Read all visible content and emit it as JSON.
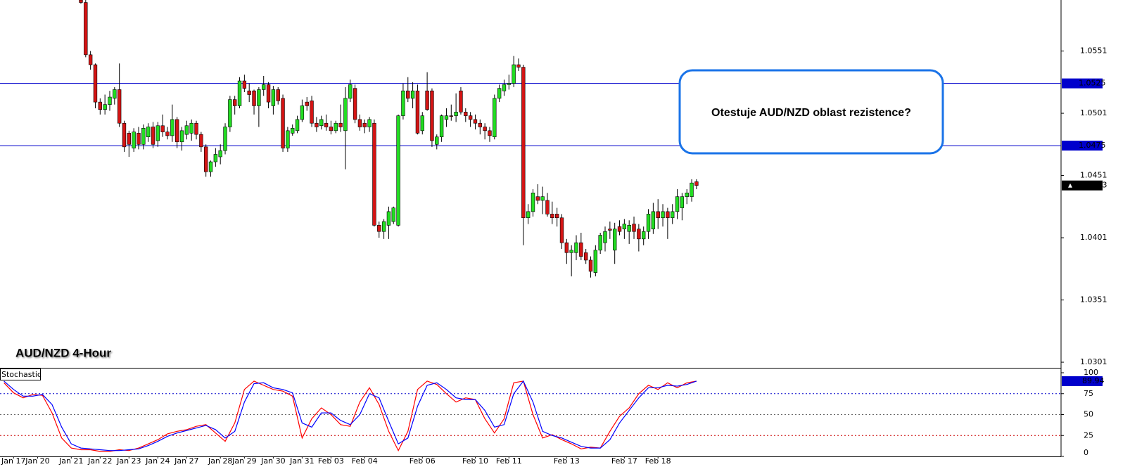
{
  "chart_data": [
    {
      "type": "candlestick",
      "title": "AUD/NZD 4-Hour",
      "annotation": "Otestuje AUD/NZD oblast rezistence?",
      "x": [
        17,
        18,
        19,
        20,
        21,
        22,
        23,
        24,
        25,
        26,
        27,
        28,
        29,
        30,
        31,
        32,
        33,
        34,
        35,
        36,
        37,
        38,
        39,
        40,
        41,
        42,
        43,
        44,
        45,
        46,
        47,
        48,
        49,
        50,
        51,
        52,
        53,
        54,
        55,
        56,
        57,
        58,
        59,
        60,
        61,
        62,
        63,
        64,
        65,
        66,
        67,
        68,
        69,
        70,
        71,
        72,
        73,
        74,
        75,
        76,
        77,
        78,
        79,
        80,
        81,
        82,
        83,
        84,
        85,
        86,
        87,
        88,
        89,
        90,
        91,
        92,
        93,
        94,
        95,
        96,
        97,
        98,
        99,
        100,
        101,
        102,
        103,
        104,
        105,
        106,
        107,
        108,
        109,
        110,
        111,
        112,
        113,
        114,
        115,
        116,
        117,
        118,
        119,
        120,
        121,
        122,
        123,
        124,
        125,
        126,
        127,
        128,
        129,
        130,
        131,
        132,
        133,
        134,
        135,
        136,
        137,
        138,
        139,
        140,
        141,
        142,
        143,
        144,
        145
      ],
      "open": [
        1.0592,
        1.059,
        1.0548,
        1.054,
        1.051,
        1.0504,
        1.0508,
        1.0513,
        1.052,
        1.0493,
        1.0485,
        1.0473,
        1.0485,
        1.0476,
        1.0482,
        1.049,
        1.0479,
        1.0491,
        1.0486,
        1.0483,
        1.0496,
        1.0478,
        1.0484,
        1.0485,
        1.0493,
        1.0484,
        1.0474,
        1.0454,
        1.0462,
        1.0466,
        1.0471,
        1.049,
        1.0512,
        1.0507,
        1.0527,
        1.0519,
        1.0519,
        1.0507,
        1.052,
        1.0524,
        1.0507,
        1.052,
        1.0513,
        1.0473,
        1.0485,
        1.0487,
        1.0496,
        1.051,
        1.0511,
        1.0493,
        1.0491,
        1.0493,
        1.049,
        1.0487,
        1.0493,
        1.0487,
        1.0513,
        1.0521,
        1.0496,
        1.0493,
        1.049,
        1.0493,
        1.0411,
        1.0406,
        1.0411,
        1.0414,
        1.0411,
        1.0499,
        1.0519,
        1.0513,
        1.0519,
        1.0487,
        1.0519,
        1.0519,
        1.0476,
        1.0482,
        1.0496,
        1.0499,
        1.0499,
        1.0519,
        1.0502,
        1.0499,
        1.0496,
        1.0493,
        1.049,
        1.0487,
        1.0482,
        1.0513,
        1.0519,
        1.0524,
        1.0525,
        1.054,
        1.0538,
        1.0417,
        1.0422,
        1.0434,
        1.0431,
        1.0431,
        1.042,
        1.042,
        1.0417,
        1.0397,
        1.0389,
        1.0389,
        1.0397,
        1.0389,
        1.0383,
        1.0373,
        1.0391,
        1.0397,
        1.0408,
        1.0391,
        1.041,
        1.0408,
        1.0406,
        1.0412,
        1.0408,
        1.04,
        1.0406,
        1.0408,
        1.0422,
        1.0417,
        1.0422,
        1.0417,
        1.0422,
        1.0425,
        1.0434,
        1.0434,
        1.0446
      ],
      "high": [
        1.0592,
        1.0592,
        1.0551,
        1.0541,
        1.0513,
        1.0516,
        1.0519,
        1.0522,
        1.0541,
        1.0495,
        1.0487,
        1.0489,
        1.049,
        1.0492,
        1.0493,
        1.0494,
        1.0494,
        1.05,
        1.049,
        1.0508,
        1.0498,
        1.049,
        1.0495,
        1.0496,
        1.0495,
        1.0486,
        1.0476,
        1.0463,
        1.0473,
        1.0476,
        1.0493,
        1.0515,
        1.0515,
        1.053,
        1.0532,
        1.0525,
        1.052,
        1.0522,
        1.0531,
        1.0526,
        1.0523,
        1.0522,
        1.0516,
        1.049,
        1.0492,
        1.0499,
        1.0512,
        1.0514,
        1.0515,
        1.0498,
        1.0499,
        1.05,
        1.0495,
        1.0495,
        1.0508,
        1.0522,
        1.0528,
        1.0524,
        1.05,
        1.0496,
        1.0498,
        1.0496,
        1.0414,
        1.0416,
        1.0426,
        1.0426,
        1.05,
        1.0525,
        1.053,
        1.0526,
        1.0524,
        1.0502,
        1.0534,
        1.0521,
        1.0484,
        1.05,
        1.0505,
        1.0508,
        1.0517,
        1.0522,
        1.0505,
        1.0502,
        1.05,
        1.0496,
        1.0493,
        1.049,
        1.0516,
        1.0524,
        1.0528,
        1.0532,
        1.0547,
        1.0545,
        1.054,
        1.0428,
        1.044,
        1.0444,
        1.0442,
        1.0437,
        1.043,
        1.0425,
        1.042,
        1.04,
        1.0395,
        1.0403,
        1.0405,
        1.0392,
        1.0386,
        1.0395,
        1.0405,
        1.041,
        1.0414,
        1.0413,
        1.0415,
        1.0416,
        1.0415,
        1.0418,
        1.0412,
        1.041,
        1.0424,
        1.0429,
        1.0432,
        1.0428,
        1.0425,
        1.0428,
        1.044,
        1.0437,
        1.044,
        1.0448,
        1.0448
      ],
      "low": [
        1.0589,
        1.0546,
        1.0536,
        1.0505,
        1.05,
        1.05,
        1.0503,
        1.0508,
        1.049,
        1.047,
        1.0466,
        1.047,
        1.0472,
        1.0472,
        1.0478,
        1.0473,
        1.0474,
        1.0482,
        1.048,
        1.0478,
        1.0473,
        1.0471,
        1.048,
        1.0479,
        1.048,
        1.047,
        1.045,
        1.045,
        1.0458,
        1.046,
        1.0468,
        1.0486,
        1.05,
        1.0505,
        1.0518,
        1.051,
        1.05,
        1.049,
        1.0515,
        1.0505,
        1.05,
        1.0508,
        1.047,
        1.047,
        1.0483,
        1.0485,
        1.0494,
        1.0503,
        1.049,
        1.0486,
        1.0488,
        1.0487,
        1.0484,
        1.0485,
        1.0486,
        1.0456,
        1.051,
        1.0493,
        1.0487,
        1.0485,
        1.0486,
        1.041,
        1.0401,
        1.04,
        1.04,
        1.0412,
        1.041,
        1.0496,
        1.051,
        1.0505,
        1.0484,
        1.0484,
        1.0503,
        1.0474,
        1.0472,
        1.0478,
        1.049,
        1.0495,
        1.0494,
        1.05,
        1.0494,
        1.049,
        1.0488,
        1.0484,
        1.048,
        1.0478,
        1.048,
        1.051,
        1.0515,
        1.052,
        1.0522,
        1.0535,
        1.0395,
        1.0412,
        1.0418,
        1.0428,
        1.042,
        1.0418,
        1.0412,
        1.041,
        1.0392,
        1.038,
        1.037,
        1.0383,
        1.0383,
        1.038,
        1.0369,
        1.037,
        1.0388,
        1.039,
        1.04,
        1.038,
        1.0403,
        1.04,
        1.0396,
        1.04,
        1.039,
        1.0395,
        1.04,
        1.0404,
        1.0408,
        1.041,
        1.04,
        1.0412,
        1.0416,
        1.0415,
        1.0428,
        1.043,
        1.044
      ],
      "close": [
        1.059,
        1.0548,
        1.054,
        1.051,
        1.0504,
        1.0508,
        1.0514,
        1.052,
        1.0493,
        1.0474,
        1.0476,
        1.0486,
        1.0476,
        1.0489,
        1.049,
        1.0476,
        1.0491,
        1.0486,
        1.0483,
        1.0496,
        1.0478,
        1.0487,
        1.0491,
        1.0493,
        1.0484,
        1.0474,
        1.0454,
        1.0462,
        1.0468,
        1.0471,
        1.049,
        1.0512,
        1.0507,
        1.0527,
        1.0521,
        1.0516,
        1.0507,
        1.052,
        1.0524,
        1.051,
        1.052,
        1.0511,
        1.0473,
        1.0487,
        1.0489,
        1.0496,
        1.0507,
        1.0507,
        1.0493,
        1.049,
        1.0496,
        1.049,
        1.0487,
        1.0493,
        1.049,
        1.0513,
        1.0524,
        1.0496,
        1.049,
        1.049,
        1.0496,
        1.0411,
        1.0406,
        1.0414,
        1.0422,
        1.0425,
        1.0499,
        1.0519,
        1.0513,
        1.0519,
        1.0485,
        1.0499,
        1.0504,
        1.0479,
        1.0482,
        1.0499,
        1.0499,
        1.0499,
        1.0502,
        1.0502,
        1.0499,
        1.0496,
        1.0493,
        1.049,
        1.0487,
        1.0483,
        1.0513,
        1.0521,
        1.0524,
        1.0525,
        1.054,
        1.0538,
        1.0417,
        1.0422,
        1.0437,
        1.0431,
        1.0434,
        1.042,
        1.0417,
        1.0417,
        1.0397,
        1.0389,
        1.0391,
        1.0397,
        1.0386,
        1.0383,
        1.0374,
        1.0391,
        1.0403,
        1.0406,
        1.0407,
        1.0408,
        1.0406,
        1.0412,
        1.0411,
        1.0406,
        1.04,
        1.0406,
        1.042,
        1.0422,
        1.0417,
        1.0422,
        1.0417,
        1.0422,
        1.0434,
        1.0434,
        1.0437,
        1.0445,
        1.0443
      ],
      "up_color": "#22dd22",
      "down_color": "#d41414",
      "xlim": [
        0.18,
        220.8
      ],
      "ylim": [
        1.02965,
        1.0592
      ],
      "yticks": [
        1.0551,
        1.0501,
        1.0451,
        1.0401,
        1.0351,
        1.0301
      ],
      "hlines": [
        {
          "value": 1.0525,
          "color": "#0000cc"
        },
        {
          "value": 1.0475,
          "color": "#0000cc"
        }
      ],
      "last_price": 1.0443
    },
    {
      "type": "line",
      "title": "Stochastic",
      "x": [
        1,
        3,
        5,
        7,
        9,
        11,
        13,
        15,
        17,
        19,
        21,
        23,
        25,
        27,
        29,
        31,
        33,
        35,
        37,
        39,
        41,
        43,
        45,
        47,
        49,
        51,
        53,
        55,
        57,
        59,
        61,
        63,
        65,
        67,
        69,
        71,
        73,
        75,
        77,
        79,
        81,
        83,
        85,
        87,
        89,
        91,
        93,
        95,
        97,
        99,
        101,
        103,
        105,
        107,
        109,
        111,
        113,
        115,
        117,
        119,
        121,
        123,
        125,
        127,
        129,
        131,
        133,
        135,
        137,
        139,
        141,
        143,
        145
      ],
      "series": [
        {
          "color": "#ff0000",
          "values": [
            88,
            76,
            70,
            74,
            73,
            52,
            22,
            10,
            8,
            8,
            6,
            6,
            8,
            7,
            10,
            15,
            20,
            27,
            30,
            32,
            36,
            38,
            28,
            18,
            40,
            80,
            90,
            85,
            80,
            78,
            72,
            22,
            45,
            58,
            50,
            38,
            36,
            65,
            82,
            62,
            30,
            7,
            30,
            80,
            90,
            86,
            75,
            65,
            70,
            68,
            45,
            28,
            45,
            88,
            90,
            50,
            22,
            26,
            20,
            15,
            9,
            11,
            10,
            30,
            48,
            58,
            75,
            85,
            80,
            88,
            82,
            88,
            89.94
          ]
        },
        {
          "color": "#0000ff",
          "values": [
            90,
            80,
            72,
            72,
            74,
            62,
            35,
            15,
            10,
            9,
            8,
            7,
            7,
            8,
            9,
            13,
            18,
            24,
            28,
            31,
            34,
            37,
            32,
            22,
            30,
            65,
            87,
            88,
            82,
            80,
            76,
            40,
            35,
            52,
            52,
            43,
            38,
            50,
            75,
            70,
            42,
            15,
            22,
            60,
            85,
            88,
            80,
            70,
            68,
            68,
            55,
            35,
            38,
            75,
            90,
            65,
            30,
            25,
            22,
            17,
            12,
            10,
            10,
            20,
            40,
            55,
            70,
            82,
            82,
            85,
            84,
            86,
            90
          ]
        }
      ],
      "xlim": [
        0.18,
        220.8
      ],
      "ylim": [
        0,
        105.9
      ],
      "yticks": [
        100,
        75,
        50,
        25,
        0
      ],
      "levels": [
        {
          "value": 75,
          "color": "#0000cc"
        },
        {
          "value": 50,
          "color": "#666666"
        },
        {
          "value": 25,
          "color": "#cc0000"
        }
      ],
      "xticks": [
        {
          "value": 3,
          "label": "Jan 17"
        },
        {
          "value": 8,
          "label": "Jan 20"
        },
        {
          "value": 15,
          "label": "Jan 21"
        },
        {
          "value": 21,
          "label": "Jan 22"
        },
        {
          "value": 27,
          "label": "Jan 23"
        },
        {
          "value": 33,
          "label": "Jan 24"
        },
        {
          "value": 39,
          "label": "Jan 27"
        },
        {
          "value": 46,
          "label": "Jan 28"
        },
        {
          "value": 51,
          "label": "Jan 29"
        },
        {
          "value": 57,
          "label": "Jan 30"
        },
        {
          "value": 63,
          "label": "Jan 31"
        },
        {
          "value": 69,
          "label": "Feb 03"
        },
        {
          "value": 76,
          "label": "Feb 04"
        },
        {
          "value": 88,
          "label": "Feb 06"
        },
        {
          "value": 99,
          "label": "Feb 10"
        },
        {
          "value": 106,
          "label": "Feb 11"
        },
        {
          "value": 118,
          "label": "Feb 13"
        },
        {
          "value": 130,
          "label": "Feb 17"
        },
        {
          "value": 137,
          "label": "Feb 18"
        }
      ]
    }
  ]
}
